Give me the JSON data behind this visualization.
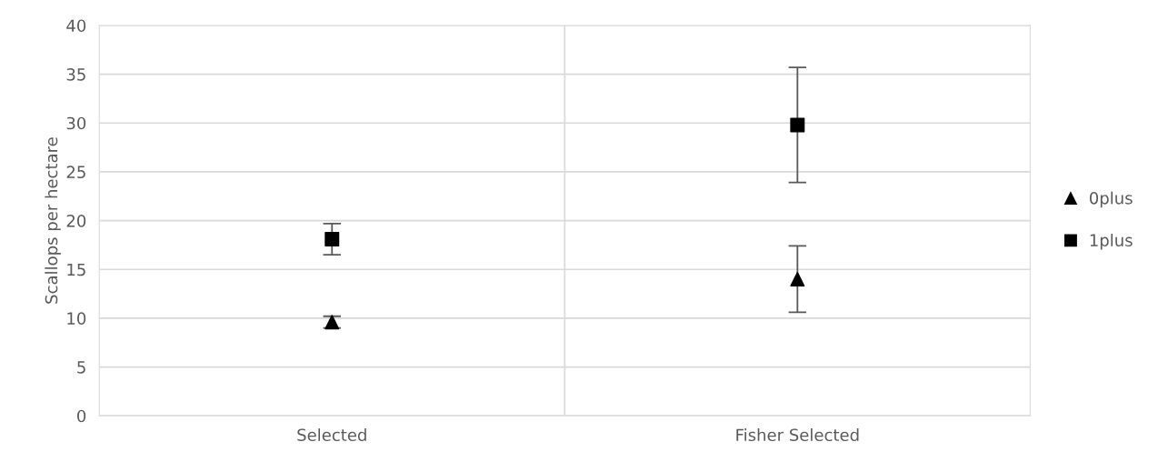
{
  "chart_data": {
    "type": "scatter",
    "ylabel": "Scallops per hectare",
    "categories": [
      "Selected",
      "Fisher Selected"
    ],
    "series": [
      {
        "name": "0plus",
        "color": "#000000",
        "marker": "triangle",
        "values": [
          9.6,
          14.0
        ],
        "errors": [
          0.6,
          3.4
        ]
      },
      {
        "name": "1plus",
        "color": "#000000",
        "marker": "square",
        "values": [
          18.1,
          29.8
        ],
        "errors": [
          1.6,
          5.9
        ]
      }
    ],
    "ylim": [
      0,
      40
    ],
    "yticks": [
      0,
      5,
      10,
      15,
      20,
      25,
      30,
      35,
      40
    ],
    "grid": true,
    "legend": "right"
  }
}
